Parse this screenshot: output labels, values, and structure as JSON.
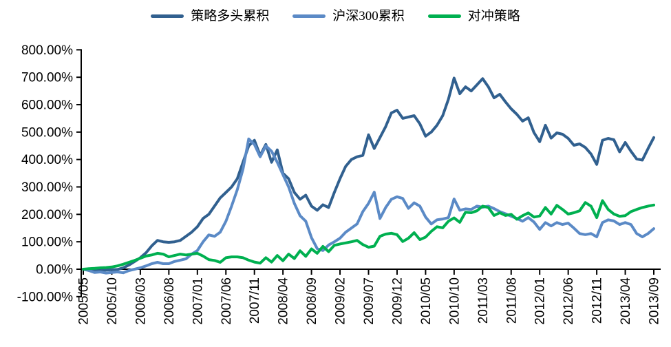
{
  "chart_data": {
    "type": "line",
    "title": "",
    "legend_position": "top",
    "grid": false,
    "x_frequency": "monthly",
    "x_start": "2005/05",
    "x_end": "2013/09",
    "x_tick_step_months": 5,
    "x_tick_labels": [
      "2005/05",
      "2005/10",
      "2006/03",
      "2006/08",
      "2007/01",
      "2007/06",
      "2007/11",
      "2008/04",
      "2008/09",
      "2009/02",
      "2009/07",
      "2009/12",
      "2010/05",
      "2010/10",
      "2011/03",
      "2011/08",
      "2012/01",
      "2012/06",
      "2012/11",
      "2013/04",
      "2013/09"
    ],
    "ylim": [
      -100,
      800
    ],
    "y_step": 100,
    "y_tick_labels": [
      "800.00%",
      "700.00%",
      "600.00%",
      "500.00%",
      "400.00%",
      "300.00%",
      "200.00%",
      "100.00%",
      "0.00%",
      "-100.00%"
    ],
    "y_unit": "percent",
    "series": [
      {
        "name": "策略多头累积",
        "color": "#31608F",
        "values": [
          0,
          -3,
          -6,
          -5,
          -3,
          -2,
          -1,
          5,
          15,
          28,
          42,
          60,
          85,
          105,
          100,
          98,
          100,
          105,
          120,
          135,
          155,
          185,
          200,
          230,
          260,
          280,
          300,
          330,
          390,
          450,
          470,
          415,
          455,
          390,
          435,
          350,
          330,
          280,
          255,
          270,
          230,
          215,
          235,
          225,
          280,
          330,
          375,
          400,
          410,
          415,
          490,
          440,
          480,
          520,
          570,
          580,
          550,
          555,
          560,
          530,
          485,
          500,
          525,
          560,
          620,
          697,
          640,
          665,
          650,
          672,
          695,
          665,
          625,
          638,
          610,
          585,
          565,
          540,
          552,
          498,
          465,
          525,
          478,
          497,
          492,
          477,
          452,
          457,
          444,
          420,
          382,
          470,
          477,
          472,
          428,
          462,
          430,
          402,
          398,
          440,
          480
        ]
      },
      {
        "name": "沪深300累积",
        "color": "#5B8AC6",
        "values": [
          0,
          -5,
          -12,
          -10,
          -14,
          -12,
          -10,
          -13,
          -5,
          0,
          5,
          12,
          20,
          25,
          20,
          20,
          28,
          33,
          38,
          55,
          68,
          100,
          125,
          120,
          135,
          175,
          230,
          290,
          365,
          475,
          455,
          410,
          450,
          430,
          390,
          345,
          300,
          240,
          195,
          175,
          115,
          75,
          68,
          88,
          100,
          113,
          135,
          150,
          165,
          210,
          240,
          281,
          185,
          225,
          255,
          264,
          258,
          222,
          242,
          230,
          190,
          165,
          180,
          183,
          188,
          256,
          215,
          220,
          218,
          230,
          226,
          230,
          221,
          210,
          202,
          193,
          185,
          175,
          188,
          172,
          145,
          170,
          158,
          170,
          163,
          168,
          150,
          130,
          126,
          130,
          118,
          170,
          180,
          176,
          163,
          170,
          163,
          130,
          118,
          130,
          148
        ]
      },
      {
        "name": "对冲策略",
        "color": "#00B050",
        "values": [
          0,
          2,
          3,
          5,
          6,
          8,
          12,
          18,
          25,
          32,
          40,
          48,
          52,
          58,
          55,
          45,
          50,
          55,
          52,
          55,
          58,
          48,
          35,
          32,
          25,
          42,
          45,
          45,
          42,
          33,
          26,
          22,
          42,
          26,
          50,
          31,
          55,
          39,
          67,
          47,
          74,
          58,
          83,
          64,
          87,
          92,
          96,
          100,
          105,
          90,
          80,
          84,
          120,
          128,
          131,
          126,
          101,
          113,
          133,
          108,
          117,
          138,
          155,
          151,
          175,
          187,
          171,
          208,
          206,
          213,
          230,
          225,
          196,
          206,
          196,
          200,
          182,
          195,
          205,
          190,
          194,
          225,
          201,
          233,
          218,
          201,
          206,
          213,
          243,
          230,
          188,
          250,
          218,
          201,
          193,
          195,
          210,
          218,
          225,
          230,
          234
        ]
      }
    ]
  }
}
